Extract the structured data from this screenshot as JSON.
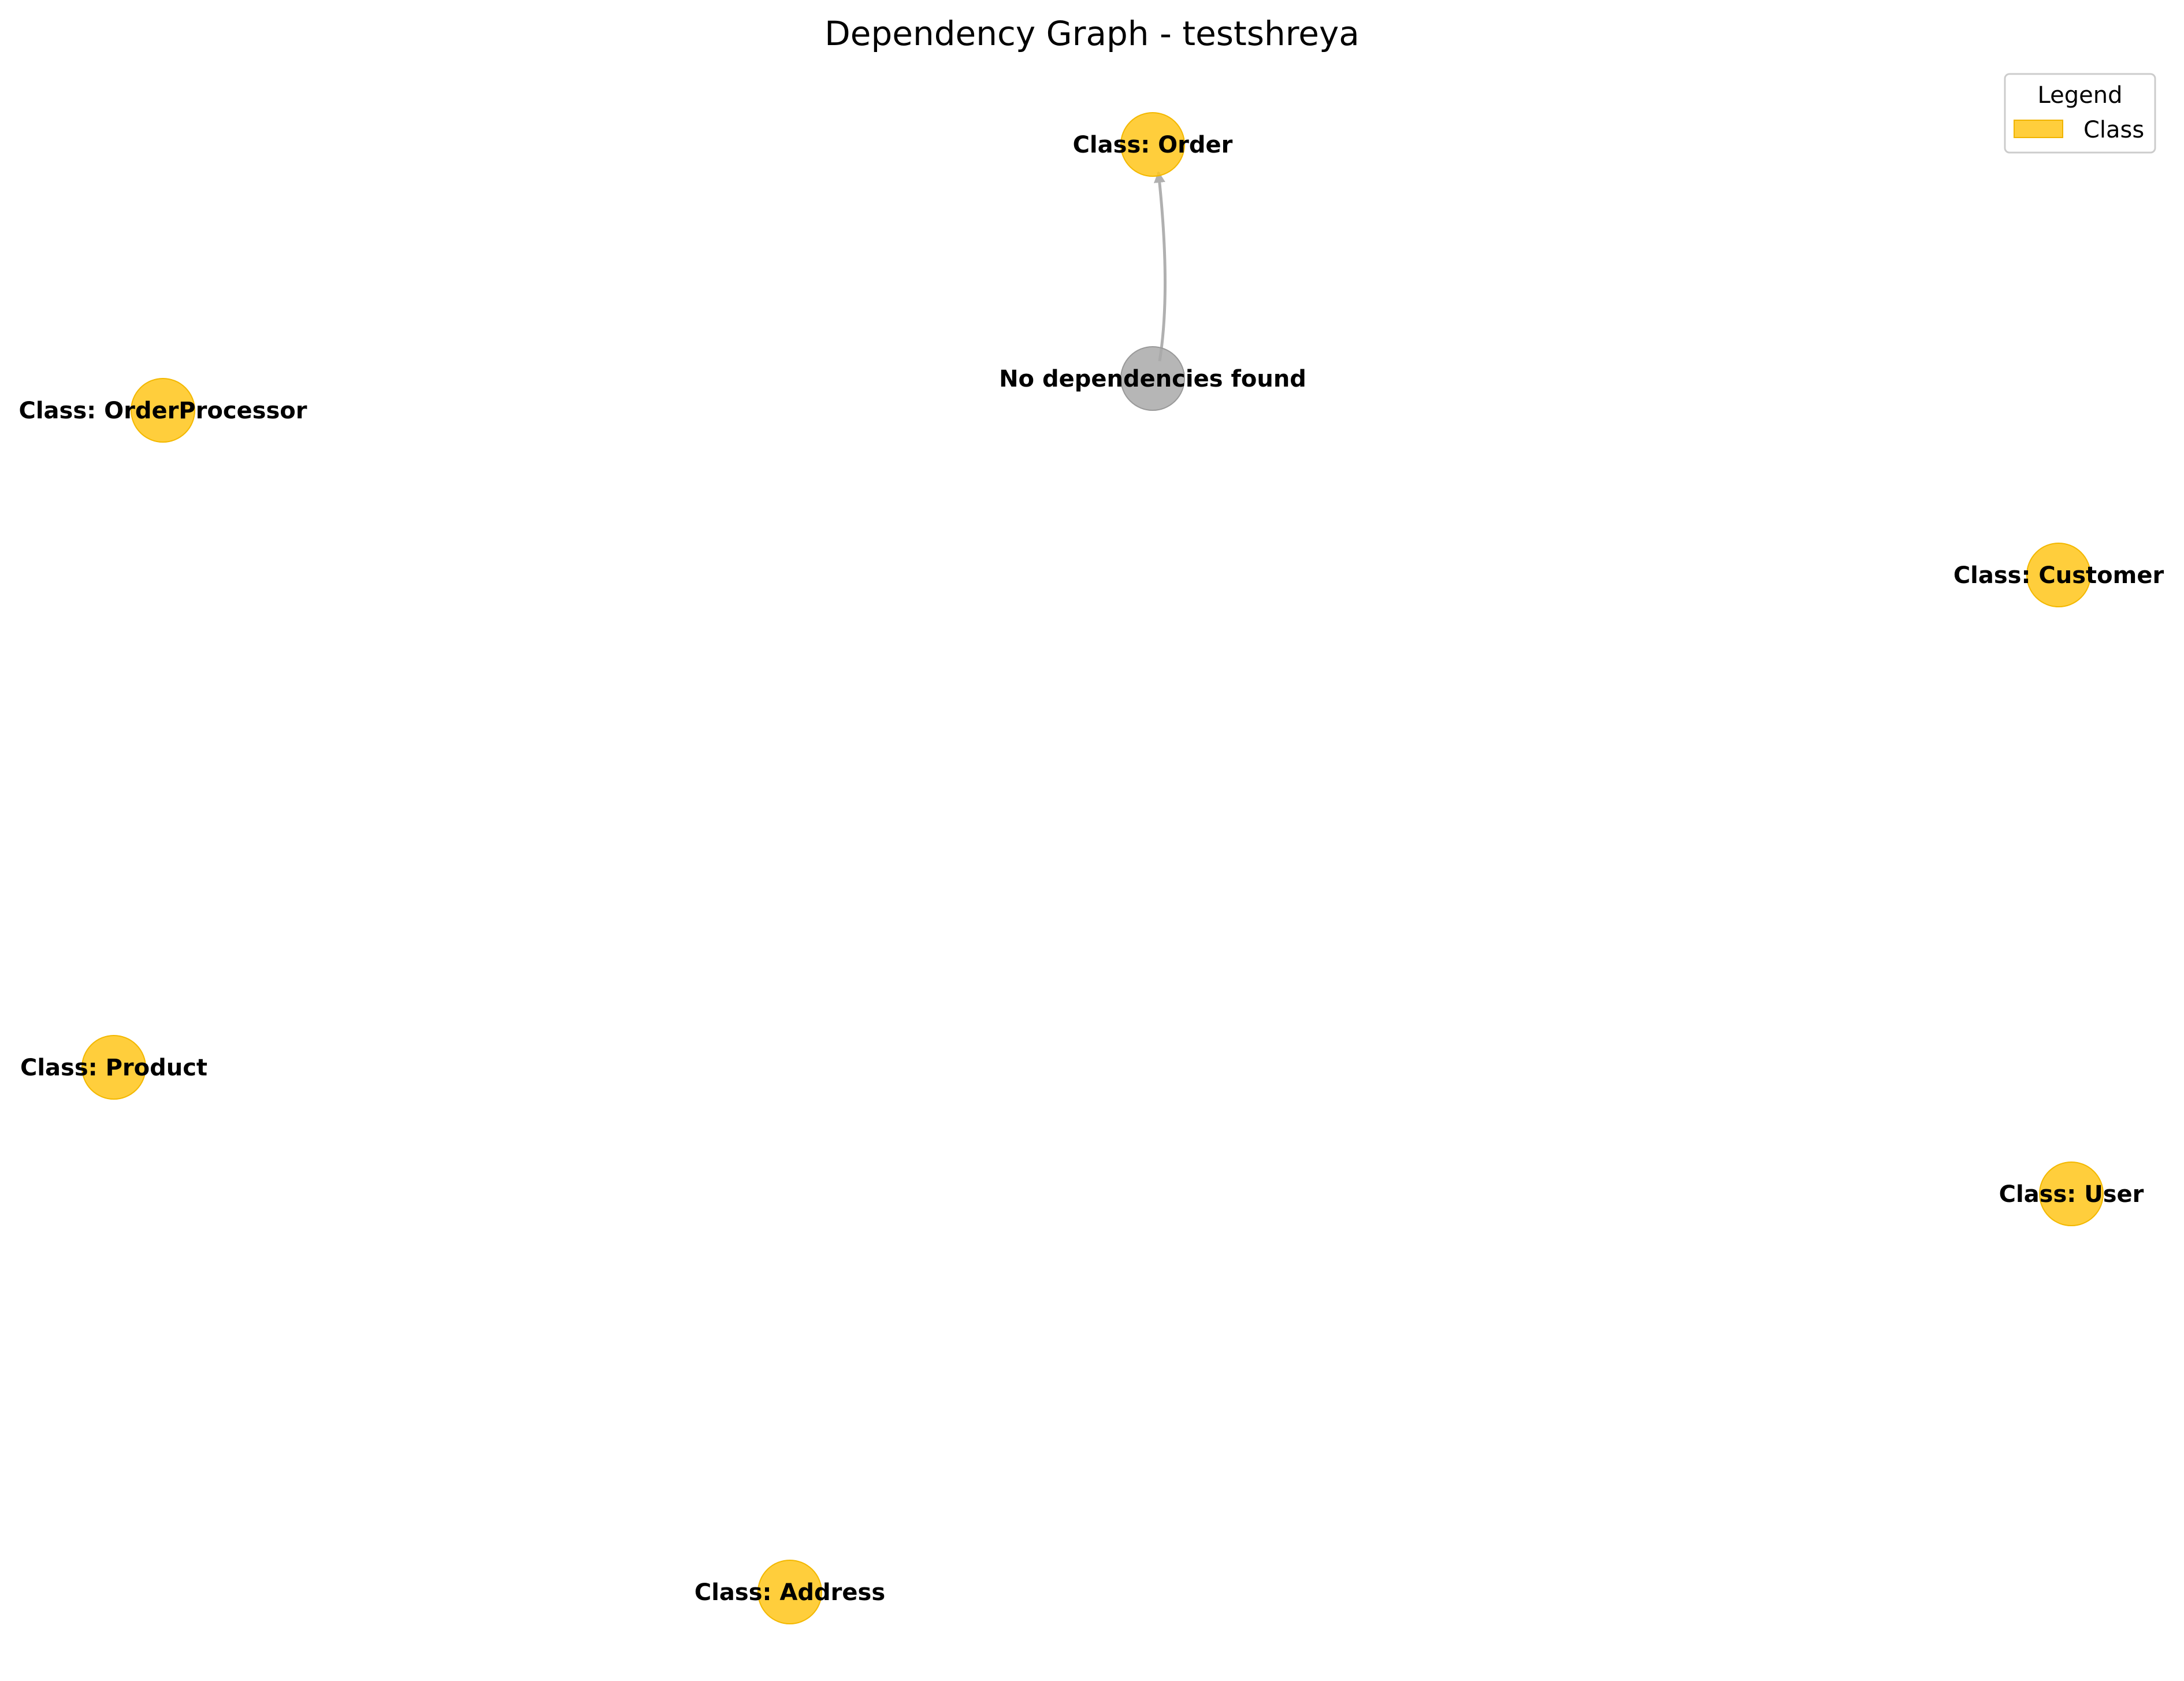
{
  "title": "Dependency Graph - testshreya",
  "legend": {
    "title": "Legend",
    "items": [
      {
        "label": "Class",
        "color": "#FFC61A"
      }
    ]
  },
  "colors": {
    "class_node": "#FFC61A",
    "placeholder_node": "#A9A9A9",
    "edge": "#B0B0B0"
  },
  "nodes": [
    {
      "id": "order",
      "label": "Class: Order",
      "kind": "class"
    },
    {
      "id": "none",
      "label": "No dependencies found",
      "kind": "placeholder"
    },
    {
      "id": "orderprocessor",
      "label": "Class: OrderProcessor",
      "kind": "class"
    },
    {
      "id": "customer",
      "label": "Class: Customer",
      "kind": "class"
    },
    {
      "id": "product",
      "label": "Class: Product",
      "kind": "class"
    },
    {
      "id": "user",
      "label": "Class: User",
      "kind": "class"
    },
    {
      "id": "address",
      "label": "Class: Address",
      "kind": "class"
    }
  ],
  "edges": [
    {
      "from": "none",
      "to": "order"
    }
  ]
}
